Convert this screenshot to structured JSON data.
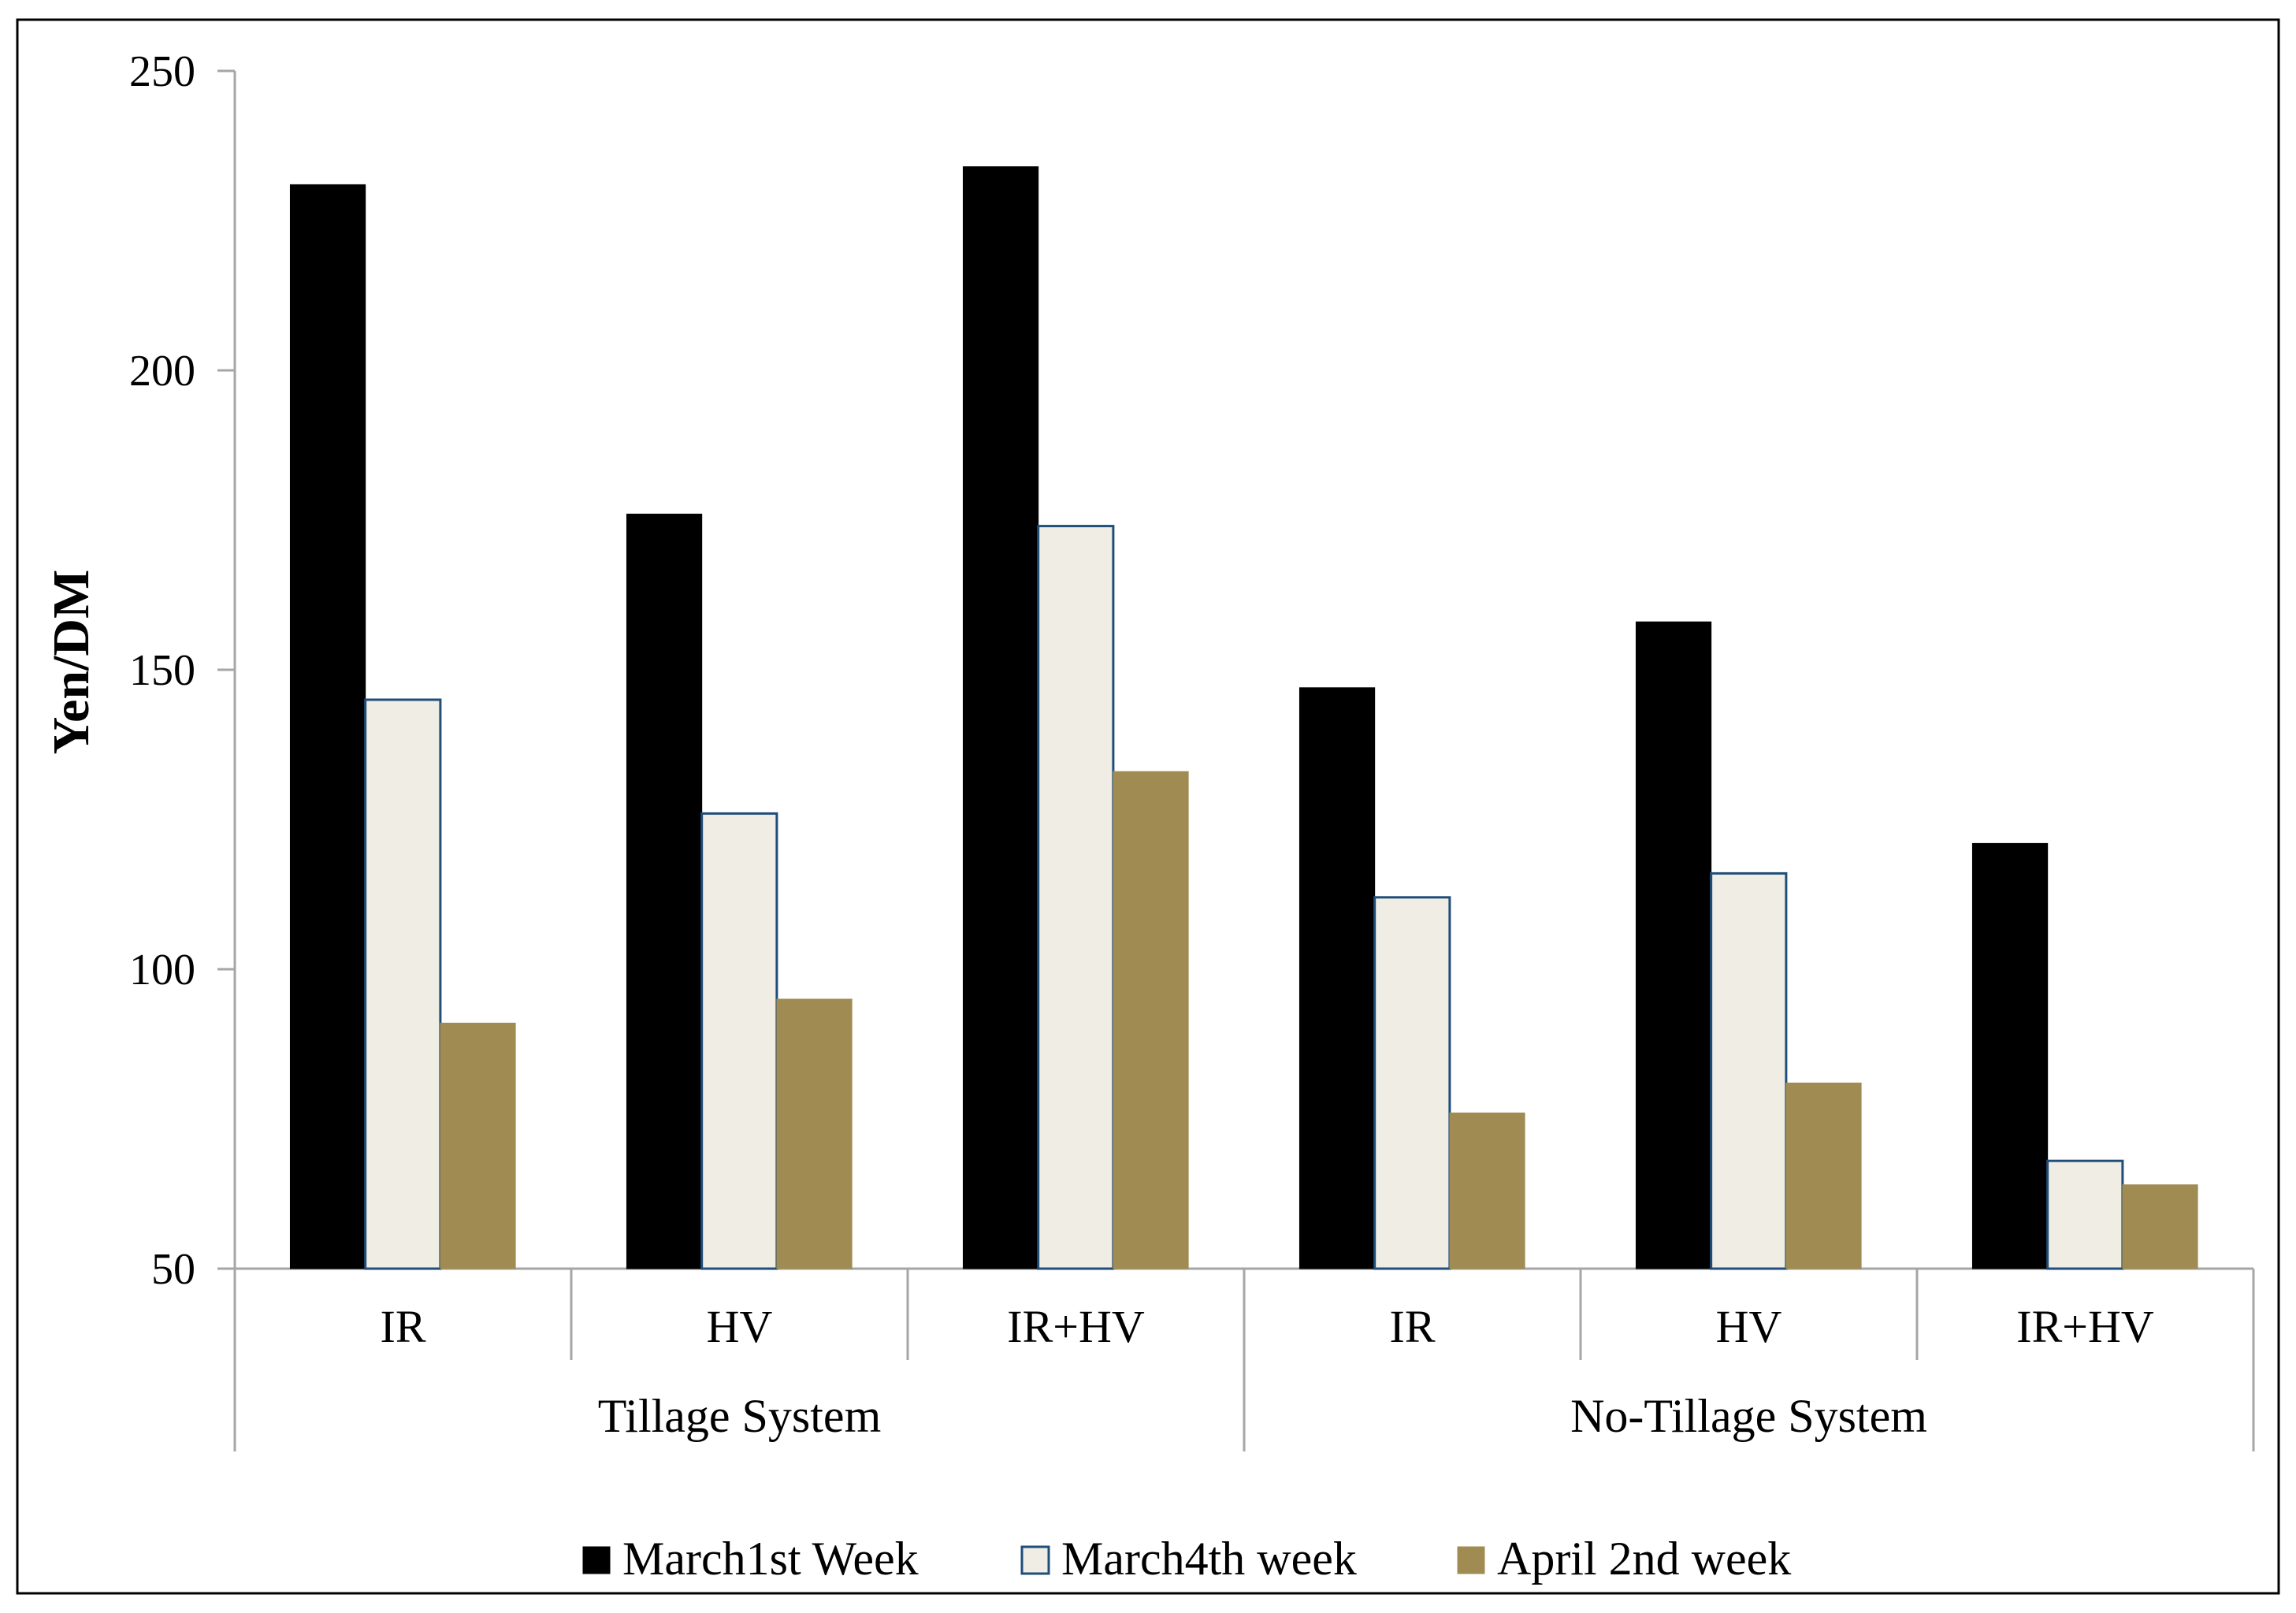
{
  "chart_data": {
    "type": "bar",
    "ylabel": "Yen/DM",
    "ylim": [
      50,
      250
    ],
    "yticks": [
      50,
      100,
      150,
      200,
      250
    ],
    "groups": [
      {
        "name": "Tillage System",
        "categories": [
          "IR",
          "HV",
          "IR+HV"
        ]
      },
      {
        "name": "No-Tillage System",
        "categories": [
          "IR",
          "HV",
          "IR+HV"
        ]
      }
    ],
    "series": [
      {
        "name": "March1st Week",
        "values": [
          231,
          176,
          234,
          147,
          158,
          121
        ],
        "color": "#000000",
        "stroke": "#000000"
      },
      {
        "name": "March4th week",
        "values": [
          145,
          126,
          174,
          112,
          116,
          68
        ],
        "color": "#efede4",
        "stroke": "#1f4e79"
      },
      {
        "name": "April 2nd week",
        "values": [
          91,
          95,
          133,
          76,
          81,
          64
        ],
        "color": "#a08c52",
        "stroke": "#a08c52"
      }
    ],
    "legend_position": "bottom",
    "grid": false
  }
}
